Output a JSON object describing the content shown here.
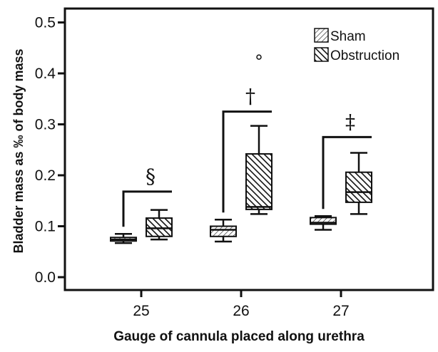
{
  "chart_data": {
    "type": "box",
    "title": "",
    "xlabel": "Gauge of cannula placed along urethra",
    "ylabel": "Bladder mass as ‰  of body mass",
    "ylim": [
      0,
      0.52
    ],
    "yticks": [
      "0.0",
      "0.1",
      "0.2",
      "0.3",
      "0.4",
      "0.5"
    ],
    "ytick_values": [
      0,
      0.1,
      0.2,
      0.3,
      0.4,
      0.5
    ],
    "categories": [
      "25",
      "26",
      "27"
    ],
    "legend_position": "top-right",
    "series": [
      {
        "name": "Sham",
        "pattern": "light-diagonal-hatch",
        "boxes": [
          {
            "category": "25",
            "min": 0.067,
            "q1": 0.071,
            "median": 0.074,
            "q3": 0.078,
            "max": 0.085,
            "outliers": []
          },
          {
            "category": "26",
            "min": 0.07,
            "q1": 0.08,
            "median": 0.093,
            "q3": 0.1,
            "max": 0.113,
            "outliers": []
          },
          {
            "category": "27",
            "min": 0.093,
            "q1": 0.104,
            "median": 0.107,
            "q3": 0.117,
            "max": 0.12,
            "outliers": []
          }
        ]
      },
      {
        "name": "Obstruction",
        "pattern": "dense-diagonal-hatch",
        "boxes": [
          {
            "category": "25",
            "min": 0.074,
            "q1": 0.08,
            "median": 0.096,
            "q3": 0.116,
            "max": 0.132,
            "outliers": []
          },
          {
            "category": "26",
            "min": 0.124,
            "q1": 0.133,
            "median": 0.138,
            "q3": 0.242,
            "max": 0.297,
            "outliers": [
              0.432
            ]
          },
          {
            "category": "27",
            "min": 0.124,
            "q1": 0.147,
            "median": 0.167,
            "q3": 0.206,
            "max": 0.244,
            "outliers": []
          }
        ]
      }
    ],
    "annotations": [
      {
        "category": "25",
        "symbol": "§",
        "bracket_y": 0.168
      },
      {
        "category": "26",
        "symbol": "†",
        "bracket_y": 0.325
      },
      {
        "category": "27",
        "symbol": "‡",
        "bracket_y": 0.275
      }
    ]
  }
}
